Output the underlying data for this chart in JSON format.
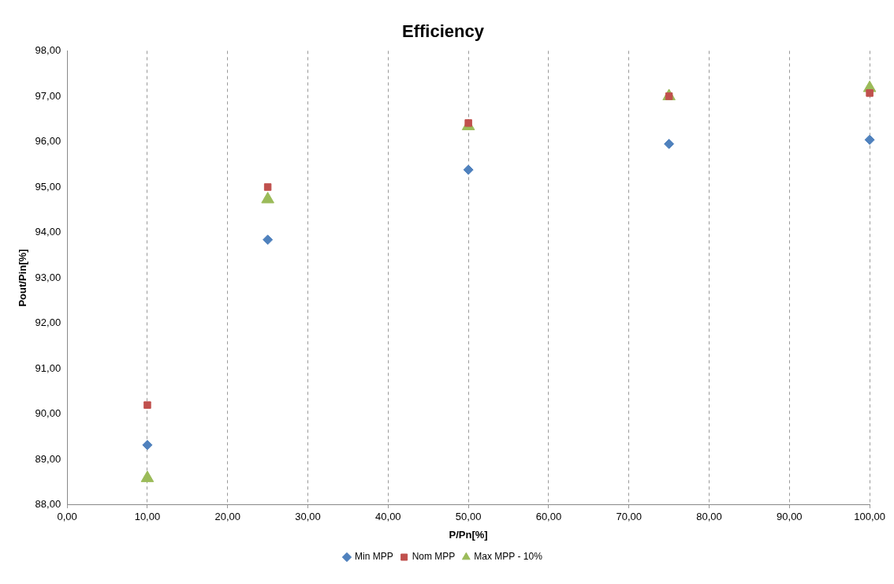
{
  "chart_data": {
    "type": "scatter",
    "title": "Efficiency",
    "xlabel": "P/Pn[%]",
    "ylabel": "Pout/Pin[%]",
    "xlim": [
      0,
      100
    ],
    "xticks": [
      {
        "value": 0,
        "label": "0,00"
      },
      {
        "value": 10,
        "label": "10,00"
      },
      {
        "value": 20,
        "label": "20,00"
      },
      {
        "value": 30,
        "label": "30,00"
      },
      {
        "value": 40,
        "label": "40,00"
      },
      {
        "value": 50,
        "label": "50,00"
      },
      {
        "value": 60,
        "label": "60,00"
      },
      {
        "value": 70,
        "label": "70,00"
      },
      {
        "value": 80,
        "label": "80,00"
      },
      {
        "value": 90,
        "label": "90,00"
      },
      {
        "value": 100,
        "label": "100,00"
      }
    ],
    "ylim": [
      88,
      98
    ],
    "yticks": [
      {
        "value": 88,
        "label": "88,00"
      },
      {
        "value": 89,
        "label": "89,00"
      },
      {
        "value": 90,
        "label": "90,00"
      },
      {
        "value": 91,
        "label": "91,00"
      },
      {
        "value": 92,
        "label": "92,00"
      },
      {
        "value": 93,
        "label": "93,00"
      },
      {
        "value": 94,
        "label": "94,00"
      },
      {
        "value": 95,
        "label": "95,00"
      },
      {
        "value": 96,
        "label": "96,00"
      },
      {
        "value": 97,
        "label": "97,00"
      },
      {
        "value": 98,
        "label": "98,00"
      }
    ],
    "x": [
      10,
      25,
      50,
      75,
      100
    ],
    "series": [
      {
        "name": "Min MPP",
        "color": "#4f81bd",
        "marker": "diamond",
        "values": [
          89.32,
          93.84,
          95.38,
          95.95,
          96.04
        ]
      },
      {
        "name": "Nom MPP",
        "color": "#c0504d",
        "marker": "square",
        "values": [
          90.2,
          95.0,
          96.41,
          97.0,
          97.07
        ]
      },
      {
        "name": "Max MPP - 10%",
        "color": "#9bbb59",
        "marker": "triangle",
        "values": [
          88.59,
          94.73,
          96.34,
          97.0,
          97.18
        ]
      }
    ],
    "grid": "x",
    "legend": "bottom"
  }
}
